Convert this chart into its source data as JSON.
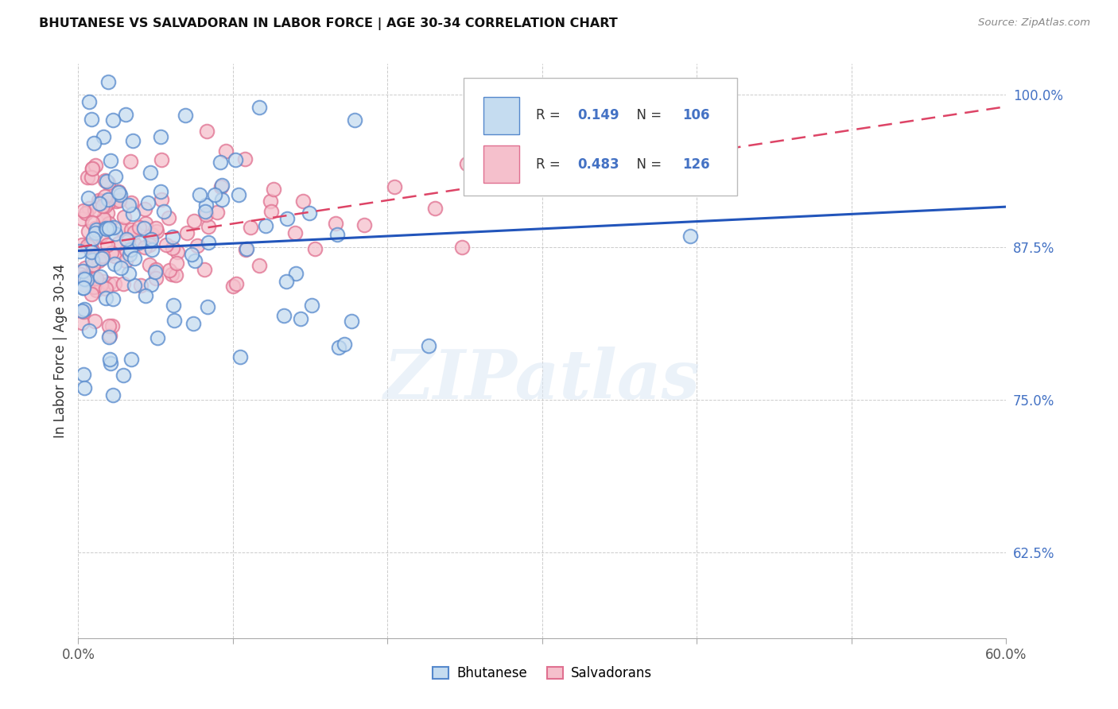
{
  "title": "BHUTANESE VS SALVADORAN IN LABOR FORCE | AGE 30-34 CORRELATION CHART",
  "source": "Source: ZipAtlas.com",
  "ylabel": "In Labor Force | Age 30-34",
  "xlim": [
    0.0,
    0.6
  ],
  "ylim": [
    0.555,
    1.025
  ],
  "ytick_positions": [
    0.625,
    0.75,
    0.875,
    1.0
  ],
  "ytick_labels": [
    "62.5%",
    "75.0%",
    "87.5%",
    "100.0%"
  ],
  "xtick_positions": [
    0.0,
    0.1,
    0.2,
    0.3,
    0.4,
    0.5,
    0.6
  ],
  "xtick_labels": [
    "0.0%",
    "",
    "",
    "",
    "",
    "",
    "60.0%"
  ],
  "blue_face": "#c5dcf0",
  "blue_edge": "#5588cc",
  "pink_face": "#f5c0cc",
  "pink_edge": "#e07090",
  "blue_line_color": "#2255bb",
  "pink_line_color": "#dd4466",
  "blue_R": 0.149,
  "blue_N": 106,
  "pink_R": 0.483,
  "pink_N": 126,
  "blue_line_x0": 0.0,
  "blue_line_y0": 0.872,
  "blue_line_x1": 0.6,
  "blue_line_y1": 0.908,
  "pink_line_x0": 0.0,
  "pink_line_y0": 0.875,
  "pink_line_x1": 0.6,
  "pink_line_y1": 0.99,
  "watermark": "ZIPatlas",
  "legend_label_blue": "Bhutanese",
  "legend_label_pink": "Salvadorans",
  "axis_tick_color": "#4472C4",
  "grid_color": "#cccccc",
  "title_color": "#111111",
  "source_color": "#888888"
}
